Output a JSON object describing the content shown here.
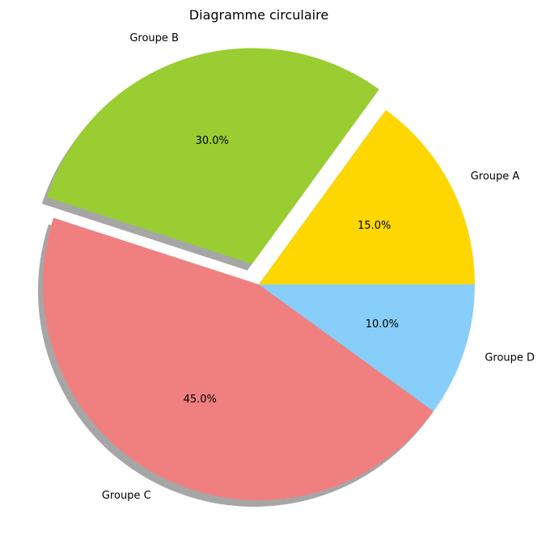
{
  "chart_data": {
    "type": "pie",
    "title": "Diagramme circulaire",
    "start_angle_deg": 0,
    "direction": "counterclockwise",
    "shadow": true,
    "slices": [
      {
        "label": "Groupe A",
        "value": 15,
        "pct_label": "15.0%",
        "color": "#FFD700",
        "exploded": false
      },
      {
        "label": "Groupe B",
        "value": 30,
        "pct_label": "30.0%",
        "color": "#9ACD32",
        "exploded": true
      },
      {
        "label": "Groupe C",
        "value": 45,
        "pct_label": "45.0%",
        "color": "#F08080",
        "exploded": false
      },
      {
        "label": "Groupe D",
        "value": 10,
        "pct_label": "10.0%",
        "color": "#87CEFA",
        "exploded": false
      }
    ]
  }
}
